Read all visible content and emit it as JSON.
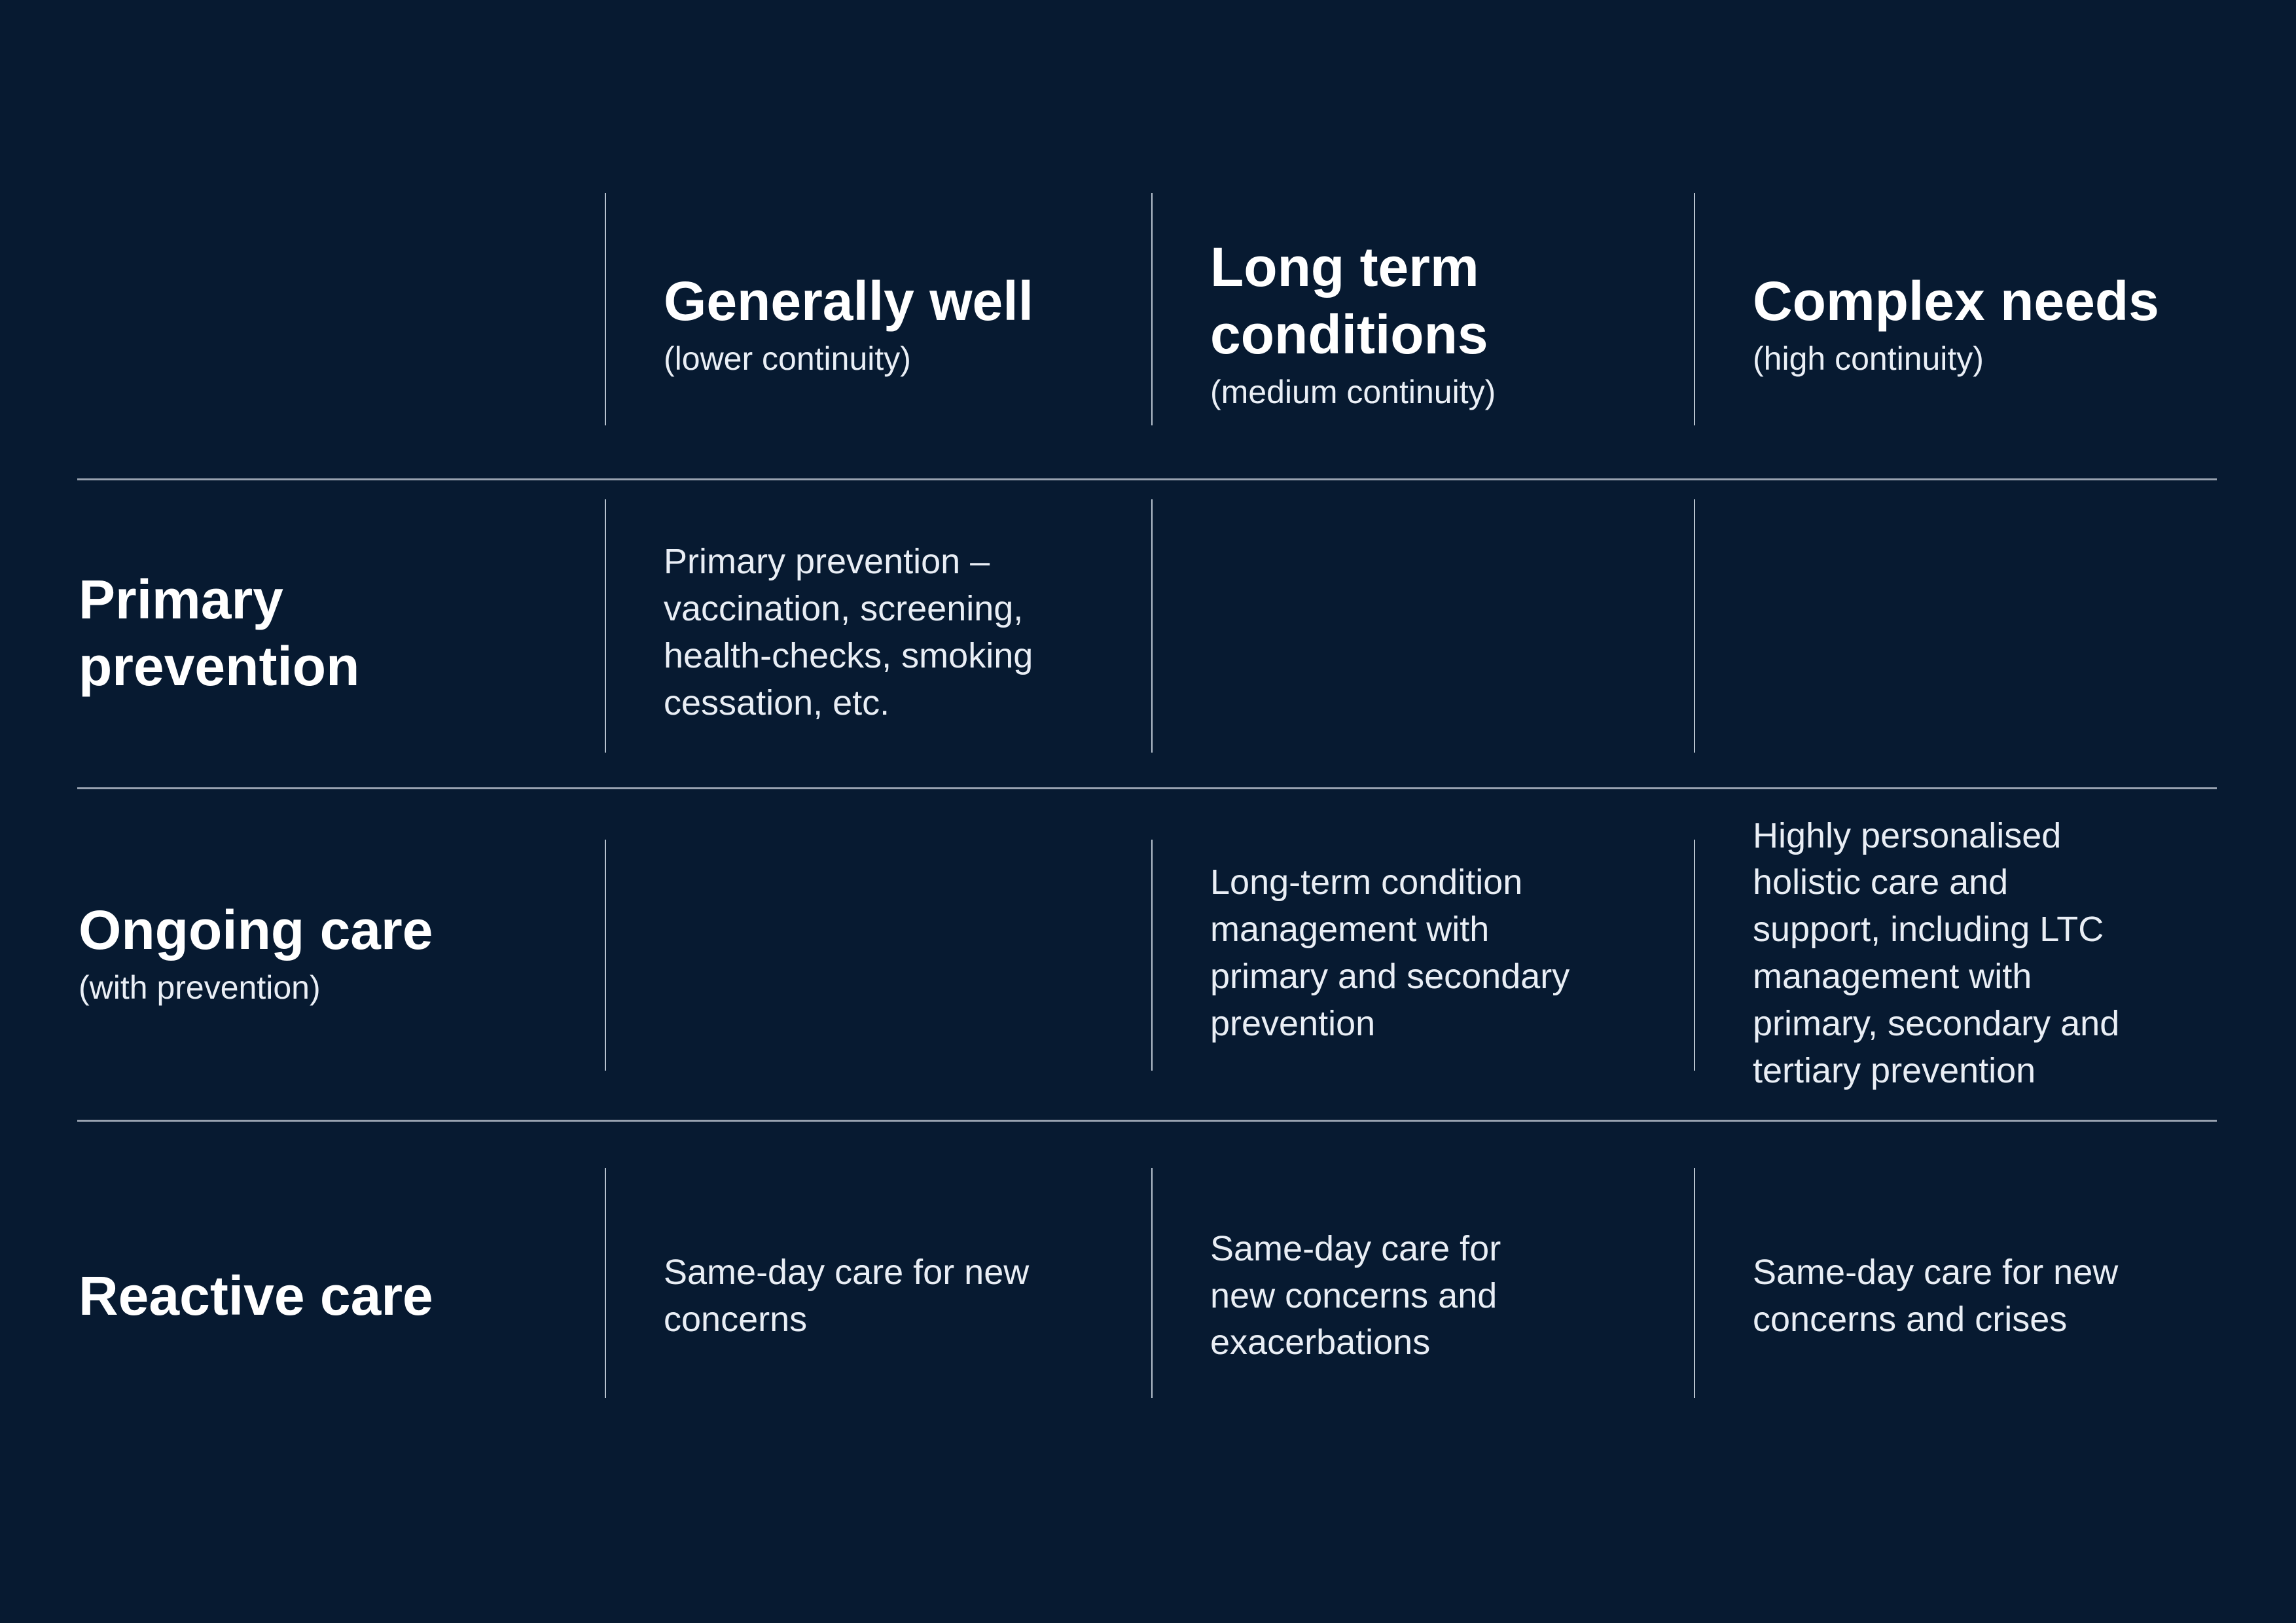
{
  "colors": {
    "background": "#071a31",
    "horizontal_divider": "#98a2b0",
    "vertical_divider": "#d0d9e4",
    "title_text": "#ffffff",
    "body_text": "#e9eef5"
  },
  "matrix": {
    "columns": [
      {
        "title": "Generally well",
        "subtitle": "(lower continuity)"
      },
      {
        "title": "Long term\nconditions",
        "subtitle": "(medium continuity)"
      },
      {
        "title": "Complex needs",
        "subtitle": "(high continuity)"
      }
    ],
    "rows": [
      {
        "title": "Primary\nprevention",
        "subtitle": "",
        "cells": [
          "Primary prevention –\nvaccination, screening,\nhealth-checks, smoking\ncessation, etc.",
          "",
          ""
        ]
      },
      {
        "title": "Ongoing care",
        "subtitle": "(with prevention)",
        "cells": [
          "",
          "Long-term condition\nmanagement with\nprimary and secondary\nprevention",
          "Highly personalised\nholistic care and\nsupport, including LTC\nmanagement with\nprimary, secondary and\ntertiary prevention"
        ]
      },
      {
        "title": "Reactive care",
        "subtitle": "",
        "cells": [
          "Same-day care for new\nconcerns",
          "Same-day care for\nnew concerns and\nexacerbations",
          "Same-day care for new\nconcerns and crises"
        ]
      }
    ]
  }
}
